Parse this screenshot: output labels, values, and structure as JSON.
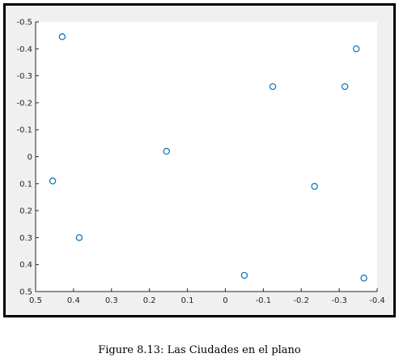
{
  "figure": {
    "caption": "Figure 8.13: Las Ciudades en el plano"
  },
  "chart_data": {
    "type": "scatter",
    "title": "",
    "xlabel": "",
    "ylabel": "",
    "xlim": [
      0.5,
      -0.4
    ],
    "ylim": [
      -0.5,
      0.5
    ],
    "x_reversed": true,
    "y_reversed": true,
    "grid": false,
    "marker": "circle-open",
    "color": "#0072BD",
    "x_ticks": [
      "0.5",
      "0.4",
      "0.3",
      "0.2",
      "0.1",
      "0",
      "-0.1",
      "-0.2",
      "-0.3",
      "-0.4"
    ],
    "y_ticks": [
      "-0.5",
      "-0.4",
      "-0.3",
      "-0.2",
      "-0.1",
      "0",
      "0.1",
      "0.2",
      "0.3",
      "0.4",
      "0.5"
    ],
    "points": [
      {
        "x": 0.43,
        "y": -0.445
      },
      {
        "x": 0.455,
        "y": 0.09
      },
      {
        "x": 0.385,
        "y": 0.3
      },
      {
        "x": 0.155,
        "y": -0.02
      },
      {
        "x": -0.125,
        "y": -0.26
      },
      {
        "x": -0.05,
        "y": 0.44
      },
      {
        "x": -0.235,
        "y": 0.11
      },
      {
        "x": -0.315,
        "y": -0.26
      },
      {
        "x": -0.345,
        "y": -0.4
      },
      {
        "x": -0.365,
        "y": 0.45
      }
    ]
  }
}
